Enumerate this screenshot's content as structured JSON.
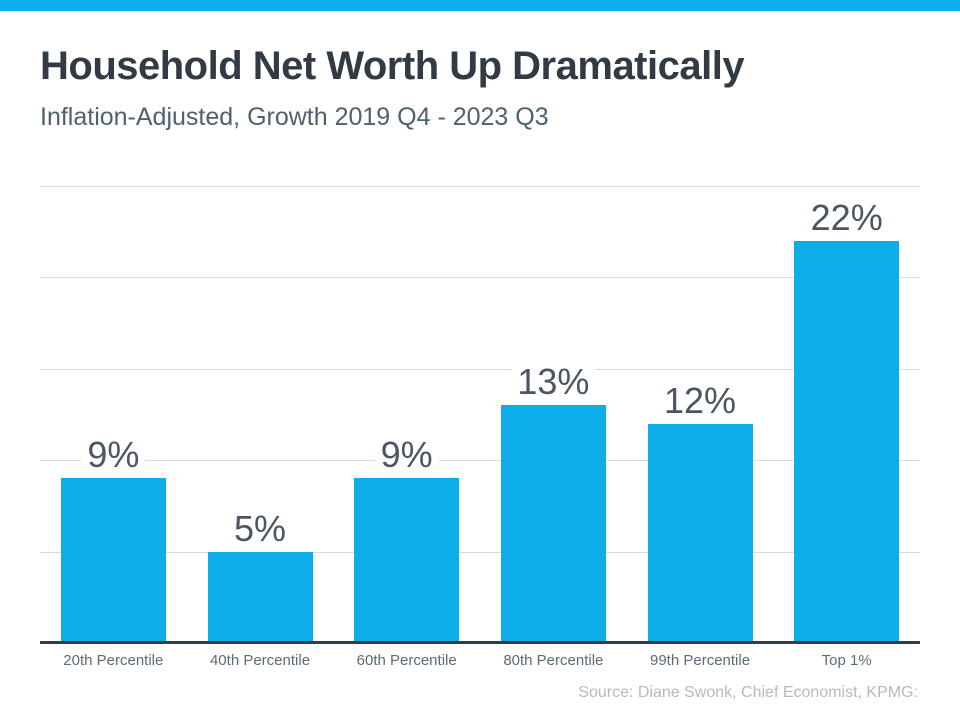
{
  "banner": {
    "color": "#0DADEA"
  },
  "header": {
    "title": "Household Net Worth Up Dramatically",
    "subtitle": "Inflation-Adjusted, Growth 2019 Q4 - 2023 Q3"
  },
  "source_note": "Source: Diane Swonk, Chief Economist, KPMG:",
  "chart_data": {
    "type": "bar",
    "title": "Household Net Worth Up Dramatically",
    "subtitle": "Inflation-Adjusted, Growth 2019 Q4 - 2023 Q3",
    "categories": [
      "20th Percentile",
      "40th Percentile",
      "60th Percentile",
      "80th Percentile",
      "99th Percentile",
      "Top 1%"
    ],
    "values": [
      9,
      5,
      9,
      13,
      12,
      22
    ],
    "value_labels": [
      "9%",
      "5%",
      "9%",
      "13%",
      "12%",
      "22%"
    ],
    "xlabel": "",
    "ylabel": "",
    "ylim": [
      0,
      25
    ],
    "gridline_step": 5,
    "grid": "horizontal",
    "legend_position": "none",
    "bar_color": "#0DADEA",
    "value_label_color": "#4C5662",
    "axis_line_color": "#333D47",
    "source": "Source: Diane Swonk, Chief Economist, KPMG:"
  }
}
